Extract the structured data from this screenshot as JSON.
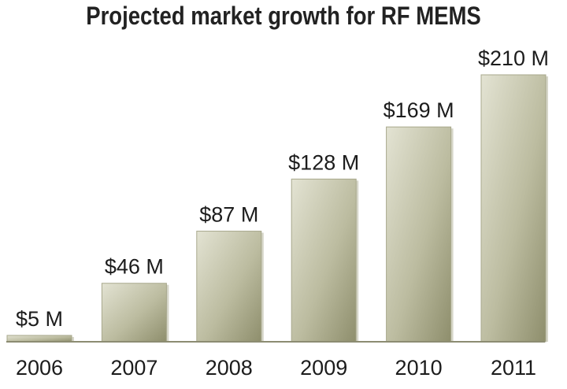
{
  "chart_data": {
    "type": "bar",
    "title": "Projected market growth for RF MEMS",
    "xlabel": "",
    "ylabel": "",
    "categories": [
      "2006",
      "2007",
      "2008",
      "2009",
      "2010",
      "2011"
    ],
    "values": [
      5,
      46,
      87,
      128,
      169,
      210
    ],
    "data_labels": [
      "$5 M",
      "$46 M",
      "$87 M",
      "$128 M",
      "$169 M",
      "$210 M"
    ],
    "ylim": [
      0,
      210
    ],
    "grid": true,
    "legend": "none",
    "bar_color": "#b9b99c"
  }
}
